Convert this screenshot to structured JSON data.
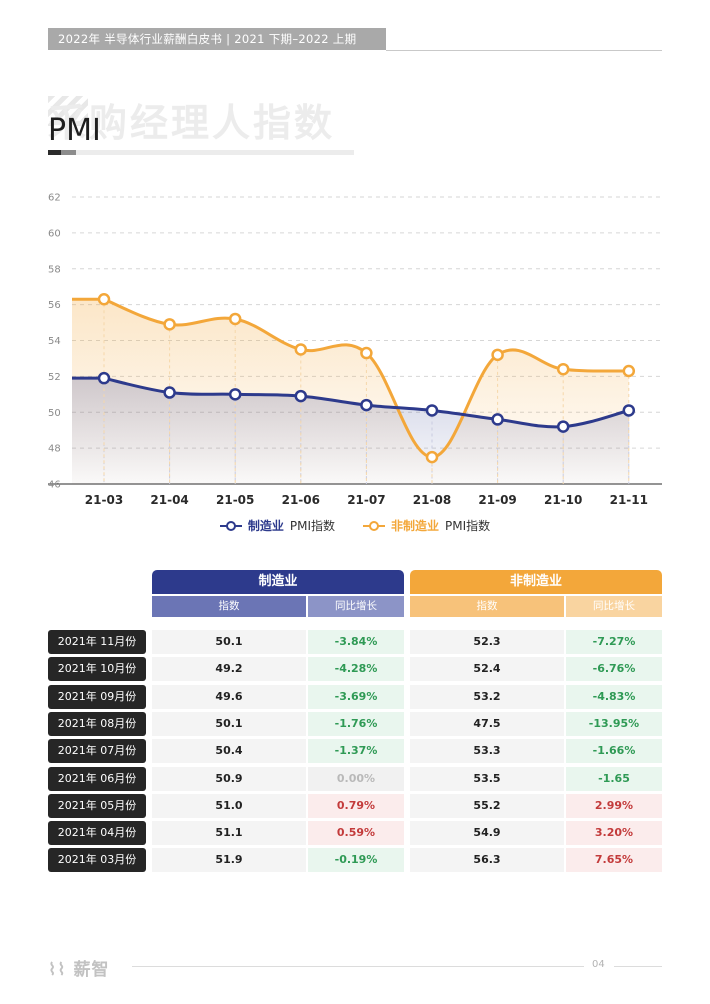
{
  "header": {
    "text": "2022年 半导体行业薪酬白皮书   |   2021 下期–2022 上期"
  },
  "section": {
    "watermark": "采购经理人指数",
    "title": "PMI"
  },
  "chart_data": {
    "type": "area",
    "categories": [
      "21-03",
      "21-04",
      "21-05",
      "21-06",
      "21-07",
      "21-08",
      "21-09",
      "21-10",
      "21-11"
    ],
    "ylim": [
      46,
      62
    ],
    "yticks": [
      46,
      48,
      50,
      52,
      54,
      56,
      58,
      60,
      62
    ],
    "grid": true,
    "legend_position": "bottom",
    "series": [
      {
        "name": "制造业",
        "suffix": " PMI指数",
        "color": "#2d3a8c",
        "values": [
          51.9,
          51.1,
          51.0,
          50.9,
          50.4,
          50.1,
          49.6,
          49.2,
          50.1
        ]
      },
      {
        "name": "非制造业",
        "suffix": " PMI指数",
        "color": "#f3a73a",
        "values": [
          56.3,
          54.9,
          55.2,
          53.5,
          53.3,
          47.5,
          53.2,
          52.4,
          52.3
        ]
      }
    ]
  },
  "table": {
    "groups": [
      {
        "title": "制造业",
        "color": "#2d3a8c",
        "sub_color": "#6b75b5",
        "sub_color2": "#8c94c7",
        "sub": [
          "指数",
          "同比增长"
        ]
      },
      {
        "title": "非制造业",
        "color": "#f3a73a",
        "sub_color": "#f7c27a",
        "sub_color2": "#f9d4a0",
        "sub": [
          "指数",
          "同比增长"
        ]
      }
    ],
    "rows": [
      {
        "label": "2021年 11月份",
        "m_idx": "50.1",
        "m_chg": "-3.84%",
        "n_idx": "52.3",
        "n_chg": "-7.27%"
      },
      {
        "label": "2021年 10月份",
        "m_idx": "49.2",
        "m_chg": "-4.28%",
        "n_idx": "52.4",
        "n_chg": "-6.76%"
      },
      {
        "label": "2021年 09月份",
        "m_idx": "49.6",
        "m_chg": "-3.69%",
        "n_idx": "53.2",
        "n_chg": "-4.83%"
      },
      {
        "label": "2021年 08月份",
        "m_idx": "50.1",
        "m_chg": "-1.76%",
        "n_idx": "47.5",
        "n_chg": "-13.95%"
      },
      {
        "label": "2021年 07月份",
        "m_idx": "50.4",
        "m_chg": "-1.37%",
        "n_idx": "53.3",
        "n_chg": "-1.66%"
      },
      {
        "label": "2021年 06月份",
        "m_idx": "50.9",
        "m_chg": "0.00%",
        "n_idx": "53.5",
        "n_chg": "-1.65"
      },
      {
        "label": "2021年 05月份",
        "m_idx": "51.0",
        "m_chg": "0.79%",
        "n_idx": "55.2",
        "n_chg": "2.99%"
      },
      {
        "label": "2021年 04月份",
        "m_idx": "51.1",
        "m_chg": "0.59%",
        "n_idx": "54.9",
        "n_chg": "3.20%"
      },
      {
        "label": "2021年 03月份",
        "m_idx": "51.9",
        "m_chg": "-0.19%",
        "n_idx": "56.3",
        "n_chg": "7.65%"
      }
    ]
  },
  "footer": {
    "logo": "薪智",
    "page": "04"
  }
}
